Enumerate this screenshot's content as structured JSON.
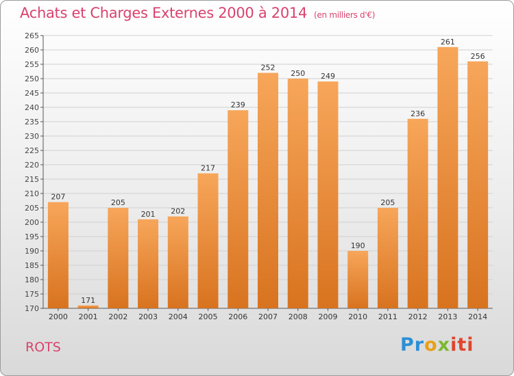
{
  "title": "Achats et Charges Externes 2000 à 2014",
  "unit": "(en milliers d'€)",
  "place": "ROTS",
  "logo": {
    "p1": "Pr",
    "p2": "o",
    "p3": "x",
    "p4": "iti"
  },
  "colors": {
    "bar_top": "#f7a65a",
    "bar_bottom": "#d8731f",
    "title": "#d9426d"
  },
  "chart_data": {
    "type": "bar",
    "title": "Achats et Charges Externes 2000 à 2014",
    "xlabel": "",
    "ylabel": "",
    "categories": [
      "2000",
      "2001",
      "2002",
      "2003",
      "2004",
      "2005",
      "2006",
      "2007",
      "2008",
      "2009",
      "2010",
      "2011",
      "2012",
      "2013",
      "2014"
    ],
    "values": [
      207,
      171,
      205,
      201,
      202,
      217,
      239,
      252,
      250,
      249,
      190,
      205,
      236,
      261,
      256
    ],
    "ylim": [
      170,
      265
    ],
    "yticks": [
      170,
      175,
      180,
      185,
      190,
      195,
      200,
      205,
      210,
      215,
      220,
      225,
      230,
      235,
      240,
      245,
      250,
      255,
      260,
      265
    ],
    "grid": true,
    "legend": "none"
  }
}
